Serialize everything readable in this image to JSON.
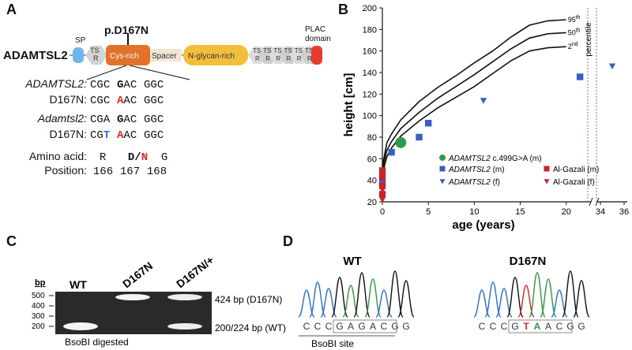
{
  "panelA": {
    "letter": "A",
    "mutation_label": "p.D167N",
    "gene": "ADAMTSL2",
    "domain_sp": "SP",
    "domain_tsr": "TS\nR",
    "domain_cys": "Cys-rich",
    "domain_spacer": "Spacer",
    "domain_nglycan": "N-glycan-rich",
    "domain_plac": "PLAC\ndomain",
    "sequences": [
      {
        "name": "ADAMTSL2:",
        "italic": true,
        "codons": [
          "CGC",
          "GAC",
          "GGC"
        ],
        "mark": {
          "codon": 1,
          "pos": 0,
          "cls": "bold"
        }
      },
      {
        "name": "D167N:",
        "italic": false,
        "codons": [
          "CGC",
          "AAC",
          "GGC"
        ],
        "mark": {
          "codon": 1,
          "pos": 0,
          "cls": "red"
        }
      },
      {
        "name": "Adamtsl2:",
        "italic": true,
        "codons": [
          "CGA",
          "GAC",
          "GGC"
        ],
        "mark": {
          "codon": 1,
          "pos": 0,
          "cls": "bold"
        }
      },
      {
        "name": "D167N:",
        "italic": false,
        "codons": [
          "CGT",
          "AAC",
          "GGC"
        ],
        "mark": {
          "codon": 0,
          "pos": 2,
          "cls": "blue"
        },
        "mark2": {
          "codon": 1,
          "pos": 0,
          "cls": "red"
        }
      }
    ],
    "aa_label": "Amino acid:",
    "aa_values": [
      "R",
      "D",
      "/",
      "N",
      "G"
    ],
    "pos_label": "Position:",
    "positions": [
      "166",
      "167",
      "168"
    ]
  },
  "panelB": {
    "letter": "B",
    "percentile_label": "percentile",
    "p95": "95th",
    "p50": "50th",
    "p2": "2nd",
    "legend": [
      {
        "label": "ADAMTSL2 c.499G>A (m)",
        "color": "#2e9a4a",
        "shape": "circle"
      },
      {
        "label": "ADAMTSL2 (m)",
        "color": "#3b5fc0",
        "shape": "square"
      },
      {
        "label": "Al-Gazali (m)",
        "color": "#c0282d",
        "shape": "square"
      },
      {
        "label": "ADAMTSL2 (f)",
        "color": "#3b5fc0",
        "shape": "triangle"
      },
      {
        "label": "Al-Gazali (f)",
        "color": "#c0282d",
        "shape": "triangle"
      }
    ]
  },
  "chart_data": {
    "type": "scatter",
    "xlabel": "age (years)",
    "ylabel": "height [cm]",
    "xlim": [
      0,
      36
    ],
    "ylim": [
      20,
      200
    ],
    "x_ticks": [
      "0",
      "5",
      "10",
      "15",
      "20",
      "34",
      "36"
    ],
    "y_ticks": [
      "20",
      "40",
      "60",
      "80",
      "100",
      "120",
      "140",
      "160",
      "180",
      "200"
    ],
    "percentile_curves": [
      {
        "name": "95th",
        "x": [
          0,
          0.5,
          1,
          2,
          4,
          6,
          8,
          10,
          12,
          14,
          16,
          18,
          20
        ],
        "y": [
          53,
          75,
          83,
          96,
          113,
          126,
          137,
          149,
          160,
          173,
          184,
          188,
          189
        ]
      },
      {
        "name": "50th",
        "x": [
          0,
          0.5,
          1,
          2,
          4,
          6,
          8,
          10,
          12,
          14,
          16,
          18,
          20
        ],
        "y": [
          50,
          68,
          76,
          88,
          103,
          116,
          127,
          138,
          150,
          162,
          172,
          176,
          177
        ]
      },
      {
        "name": "2nd",
        "x": [
          0,
          0.5,
          1,
          2,
          4,
          6,
          8,
          10,
          12,
          14,
          16,
          18,
          20
        ],
        "y": [
          46,
          62,
          70,
          81,
          95,
          107,
          117,
          127,
          139,
          151,
          160,
          163,
          164
        ]
      }
    ],
    "series": [
      {
        "name": "ADAMTSL2 c.499G>A (m)",
        "shape": "circle",
        "color": "#2e9a4a",
        "points": [
          [
            2,
            75
          ]
        ]
      },
      {
        "name": "ADAMTSL2 (m)",
        "shape": "square",
        "color": "#3b5fc0",
        "points": [
          [
            0,
            38
          ],
          [
            1,
            66
          ],
          [
            4,
            80
          ],
          [
            5,
            93
          ],
          [
            21.5,
            136
          ]
        ]
      },
      {
        "name": "Al-Gazali (m)",
        "shape": "square",
        "color": "#c0282d",
        "points": [
          [
            0,
            49
          ],
          [
            0,
            43
          ],
          [
            0,
            35
          ],
          [
            0,
            27
          ]
        ]
      },
      {
        "name": "ADAMTSL2 (f)",
        "shape": "triangle",
        "color": "#3b5fc0",
        "points": [
          [
            11,
            114
          ],
          [
            35,
            146
          ]
        ]
      },
      {
        "name": "Al-Gazali (f)",
        "shape": "triangle",
        "color": "#c0282d",
        "points": [
          [
            0,
            31
          ],
          [
            0,
            25
          ],
          [
            0,
            22
          ]
        ]
      }
    ]
  },
  "panelC": {
    "letter": "C",
    "bp_label": "bp",
    "ladder": [
      "500",
      "400",
      "300",
      "200"
    ],
    "lanes": [
      "WT",
      "D167N",
      "D167N/+"
    ],
    "band_upper": "424 bp (D167N)",
    "band_lower": "200/224 bp (WT)",
    "caption": "BsoBI digested"
  },
  "panelD": {
    "letter": "D",
    "wt_title": "WT",
    "mut_title": "D167N",
    "wt_bases": [
      "C",
      "C",
      "C",
      "G",
      "A",
      "G",
      "A",
      "C",
      "G",
      "G"
    ],
    "mut_bases": [
      "C",
      "C",
      "C",
      "G",
      "T",
      "A",
      "A",
      "C",
      "G",
      "G"
    ],
    "site_label": "BsoBI site"
  }
}
